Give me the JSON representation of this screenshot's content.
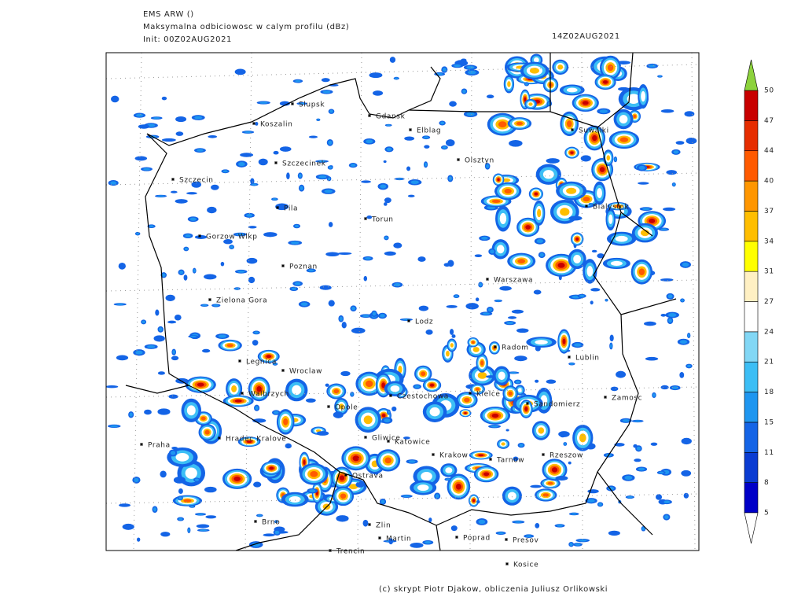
{
  "header": {
    "model": "EMS ARW ()",
    "field": "Maksymalna odbiciowosc w calym profilu (dBz)",
    "init": "Init: 00Z02AUG2021",
    "valid": "14Z02AUG2021"
  },
  "cities": [
    "Slupsk",
    "Gdansk",
    "Koszalin",
    "Elblag",
    "Suwalki",
    "Szczecinek",
    "Olsztyn",
    "Szczecin",
    "Pila",
    "Bialystok",
    "Torun",
    "Gorzow Wlkp",
    "Poznan",
    "Warszawa",
    "Zielona Gora",
    "Lodz",
    "Radom",
    "Lublin",
    "Legnica",
    "Wroclaw",
    "Walbrzych",
    "Czestochowa",
    "Kielce",
    "Zamosc",
    "Sandomierz",
    "Opole",
    "Hradec Kralove",
    "Gliwice",
    "Katowice",
    "Praha",
    "Krakow",
    "Tarnow",
    "Rzeszow",
    "Ostrava",
    "Brno",
    "Zlin",
    "Martin",
    "Poprad",
    "Presov",
    "Trencin",
    "Kosice"
  ],
  "colorbar": {
    "ticks": [
      5,
      8,
      11,
      15,
      18,
      21,
      24,
      27,
      31,
      34,
      37,
      40,
      44,
      47,
      50
    ],
    "colors": [
      "#0000c8",
      "#0a3cd2",
      "#1464e6",
      "#1e96f0",
      "#3cbef5",
      "#82d7f5",
      "#ffffff",
      "#fff0c3",
      "#ffff00",
      "#ffbe00",
      "#ff9600",
      "#ff5a00",
      "#e62d00",
      "#c80000"
    ],
    "over_color": "#8cd23c",
    "under_color": "#ffffff"
  },
  "credit": "(c) skrypt Piotr Djakow, obliczenia Juliusz Orlikowski"
}
